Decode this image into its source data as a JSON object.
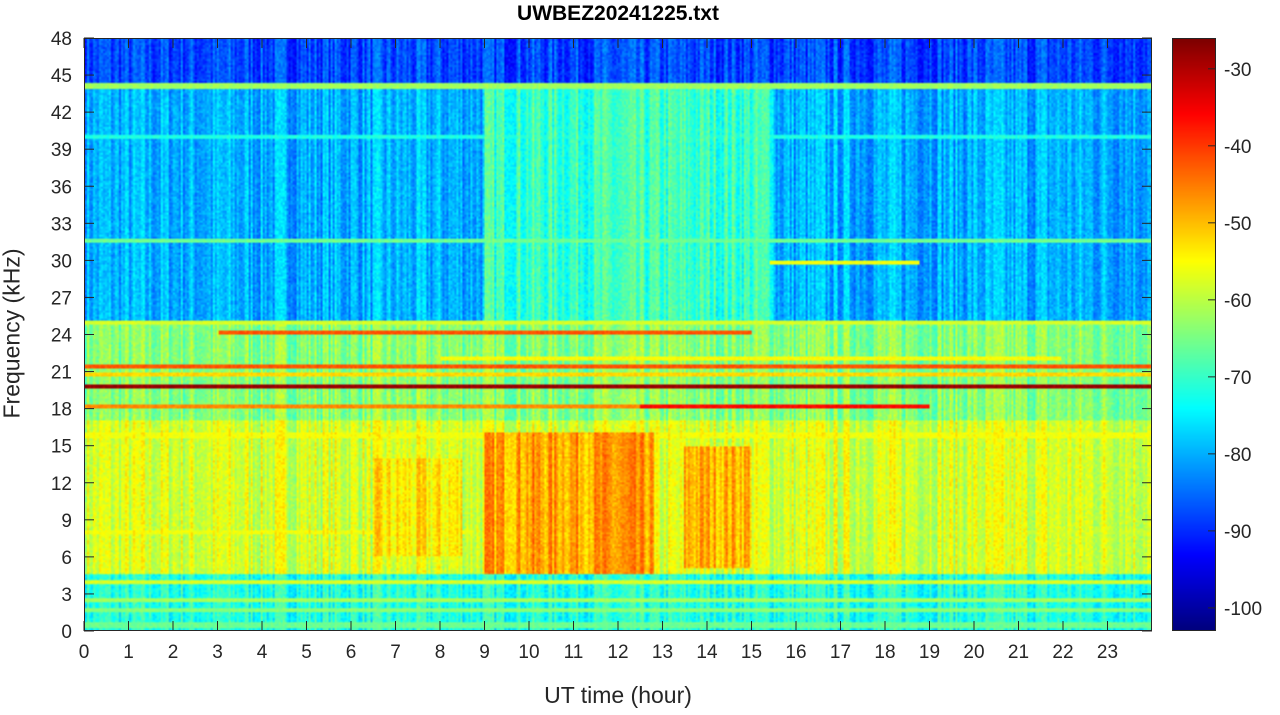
{
  "chart_data": {
    "type": "heatmap",
    "title": "UWBEZ20241225.txt",
    "xlabel": "UT time (hour)",
    "ylabel": "Frequency (kHz)",
    "xlim": [
      0,
      24
    ],
    "ylim": [
      0,
      48
    ],
    "xticks": [
      0,
      1,
      2,
      3,
      4,
      5,
      6,
      7,
      8,
      9,
      10,
      11,
      12,
      13,
      14,
      15,
      16,
      17,
      18,
      19,
      20,
      21,
      22,
      23
    ],
    "yticks": [
      0,
      3,
      6,
      9,
      12,
      15,
      18,
      21,
      24,
      27,
      30,
      33,
      36,
      39,
      42,
      45,
      48
    ],
    "colorbar": {
      "range": [
        -103,
        -26
      ],
      "ticks": [
        -100,
        -90,
        -80,
        -70,
        -60,
        -50,
        -40,
        -30
      ],
      "colormap": "jet"
    },
    "background": [
      {
        "f": [
          0,
          4.5
        ],
        "dB": -72
      },
      {
        "f": [
          4.5,
          17
        ],
        "dB": -58
      },
      {
        "f": [
          17,
          25
        ],
        "dB": -64
      },
      {
        "f": [
          25,
          44
        ],
        "dB": -80
      },
      {
        "f": [
          44,
          48
        ],
        "dB": -88
      }
    ],
    "daytime_enhancement": [
      {
        "t": [
          9,
          12.8
        ],
        "f": [
          4.5,
          16
        ],
        "dB": -48
      },
      {
        "t": [
          13.5,
          15
        ],
        "f": [
          5,
          15
        ],
        "dB": -49
      },
      {
        "t": [
          6.5,
          8.5
        ],
        "f": [
          6,
          14
        ],
        "dB": -54
      },
      {
        "t": [
          9,
          15.5
        ],
        "f": [
          25,
          44
        ],
        "dB": -70
      }
    ],
    "bands": [
      {
        "f": 19.8,
        "t": [
          0,
          24
        ],
        "dB": -28
      },
      {
        "f": 21.4,
        "t": [
          0,
          24
        ],
        "dB": -42
      },
      {
        "f": 20.8,
        "t": [
          0,
          24
        ],
        "dB": -52
      },
      {
        "f": 18.2,
        "t": [
          0,
          12.5
        ],
        "dB": -46
      },
      {
        "f": 18.1,
        "t": [
          12.5,
          19
        ],
        "dB": -36
      },
      {
        "f": 24.2,
        "t": [
          3,
          15
        ],
        "dB": -42
      },
      {
        "f": 25.0,
        "t": [
          0,
          24
        ],
        "dB": -58
      },
      {
        "f": 22.0,
        "t": [
          8,
          22
        ],
        "dB": -55
      },
      {
        "f": 44.2,
        "t": [
          0,
          24
        ],
        "dB": -62
      },
      {
        "f": 40.0,
        "t": [
          0,
          24
        ],
        "dB": -72
      },
      {
        "f": 31.6,
        "t": [
          0,
          24
        ],
        "dB": -66
      },
      {
        "f": 29.8,
        "t": [
          15.4,
          18.8
        ],
        "dB": -56
      },
      {
        "f": 8.0,
        "t": [
          0,
          8.7
        ],
        "dB": -56
      },
      {
        "f": 8.0,
        "t": [
          18.5,
          24
        ],
        "dB": -60
      },
      {
        "f": 3.9,
        "t": [
          0,
          24
        ],
        "dB": -58
      },
      {
        "f": 2.4,
        "t": [
          0,
          24
        ],
        "dB": -62
      },
      {
        "f": 1.6,
        "t": [
          0,
          24
        ],
        "dB": -64
      },
      {
        "f": 0.4,
        "t": [
          0,
          24
        ],
        "dB": -66
      },
      {
        "f": 15.8,
        "t": [
          0,
          24
        ],
        "dB": -56
      }
    ]
  }
}
